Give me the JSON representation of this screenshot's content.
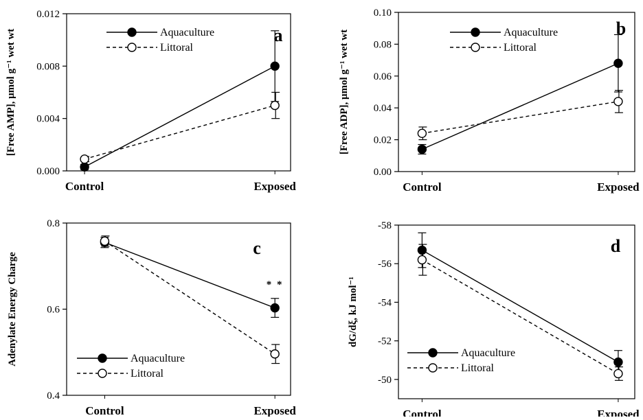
{
  "figure": {
    "panels": [
      "a",
      "b",
      "c",
      "d"
    ]
  },
  "chart_data": [
    {
      "type": "line",
      "panel": "a",
      "categories": [
        "Control",
        "Exposed"
      ],
      "ylabel": "[Free AMP], μmol g⁻¹ wet wt",
      "xlabel": "",
      "ylim": [
        0.0,
        0.012
      ],
      "yticks": [
        "0.000",
        "0.004",
        "0.008",
        "0.012"
      ],
      "reversed": false,
      "legend_position": "top-left",
      "series": [
        {
          "name": "Aquaculture",
          "values": [
            0.0003,
            0.008
          ],
          "errors": [
            0.0002,
            0.0027
          ],
          "marker": "filled",
          "line": "solid"
        },
        {
          "name": "Littoral",
          "values": [
            0.0009,
            0.005
          ],
          "errors": [
            0.0002,
            0.001
          ],
          "marker": "open",
          "line": "dashed"
        }
      ],
      "annotations": []
    },
    {
      "type": "line",
      "panel": "b",
      "categories": [
        "Control",
        "Exposed"
      ],
      "ylabel": "[Free ADP], μmol g⁻¹ wet wt",
      "xlabel": "",
      "ylim": [
        0.0,
        0.1
      ],
      "yticks": [
        "0.00",
        "0.02",
        "0.04",
        "0.06",
        "0.08",
        "0.10"
      ],
      "reversed": false,
      "legend_position": "top-left",
      "series": [
        {
          "name": "Aquaculture",
          "values": [
            0.014,
            0.068
          ],
          "errors": [
            0.003,
            0.018
          ],
          "marker": "filled",
          "line": "solid"
        },
        {
          "name": "Littoral",
          "values": [
            0.024,
            0.044
          ],
          "errors": [
            0.004,
            0.007
          ],
          "marker": "open",
          "line": "dashed"
        }
      ],
      "annotations": []
    },
    {
      "type": "line",
      "panel": "c",
      "categories": [
        "Control",
        "Exposed"
      ],
      "ylabel": "Adenylate Energy Charge",
      "xlabel": "",
      "ylim": [
        0.4,
        0.8
      ],
      "yticks": [
        "0.4",
        "0.6",
        "0.8"
      ],
      "reversed": false,
      "legend_position": "bottom-left",
      "series": [
        {
          "name": "Aquaculture",
          "values": [
            0.755,
            0.603
          ],
          "errors": [
            0.012,
            0.022
          ],
          "marker": "filled",
          "line": "solid"
        },
        {
          "name": "Littoral",
          "values": [
            0.758,
            0.496
          ],
          "errors": [
            0.012,
            0.022
          ],
          "marker": "open",
          "line": "dashed"
        }
      ],
      "annotations": [
        {
          "text": "* *",
          "category": "Exposed",
          "y": 0.65
        }
      ]
    },
    {
      "type": "line",
      "panel": "d",
      "categories": [
        "Control",
        "Exposed"
      ],
      "ylabel": "dG/dξ, kJ mol⁻¹",
      "xlabel": "",
      "ylim": [
        -58,
        -49
      ],
      "yticks": [
        "-58",
        "-56",
        "-54",
        "-52",
        "-50"
      ],
      "reversed": true,
      "legend_position": "bottom-left",
      "series": [
        {
          "name": "Aquaculture",
          "values": [
            -56.7,
            -50.9
          ],
          "errors": [
            0.9,
            0.6
          ],
          "marker": "filled",
          "line": "solid"
        },
        {
          "name": "Littoral",
          "values": [
            -56.2,
            -50.3
          ],
          "errors": [
            0.8,
            0.35
          ],
          "marker": "open",
          "line": "dashed"
        }
      ],
      "annotations": []
    }
  ]
}
